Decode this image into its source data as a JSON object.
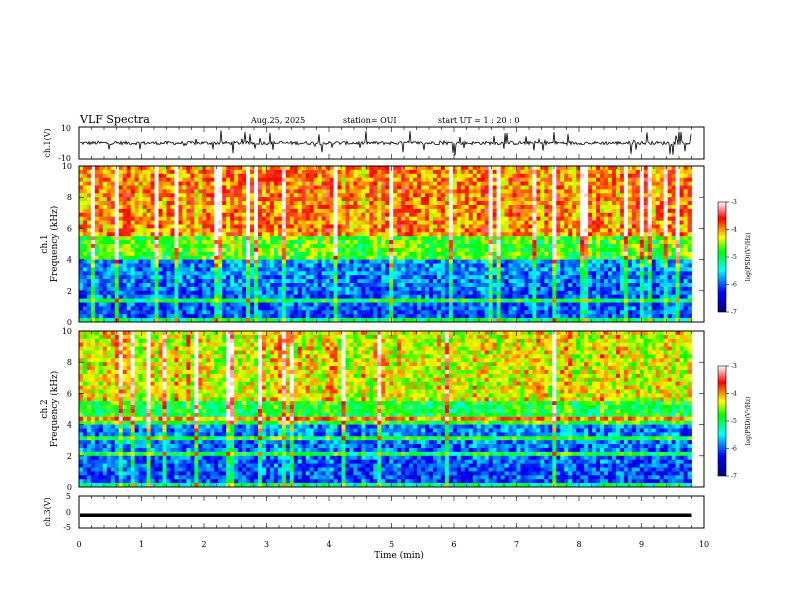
{
  "header": {
    "title": "VLF Spectra",
    "date": "Aug.25, 2025",
    "station": "station= OUI",
    "start": "start  UT =   1 : 20 : 0"
  },
  "chart_data": [
    {
      "type": "line",
      "panel": "waveform-ch1",
      "ylabel": "ch.1(V)",
      "ylim": [
        -10,
        10
      ],
      "yticks": [
        "10",
        "-10"
      ],
      "xlim": [
        0,
        10
      ],
      "baseline": 0
    },
    {
      "type": "heatmap",
      "panel": "spectrogram-ch1",
      "ylabel": "ch.1\nFrequency (kHz)",
      "ylim": [
        0,
        10
      ],
      "yticks": [
        "0",
        "2",
        "4",
        "6",
        "8",
        "10"
      ],
      "xlim": [
        0,
        10
      ],
      "xrange_data": [
        0,
        9.8
      ],
      "colorbar": {
        "label": "log(PSD)(V²/Hz)",
        "range": [
          -7,
          -3
        ],
        "ticks": [
          "-3",
          "-4",
          "-5",
          "-6",
          "-7"
        ],
        "colors": [
          "#000080",
          "#0000ff",
          "#00ffff",
          "#00ff00",
          "#ffff00",
          "#ff0000",
          "#ffffff"
        ]
      }
    },
    {
      "type": "heatmap",
      "panel": "spectrogram-ch2",
      "ylabel": "ch.2\nFrequency (kHz)",
      "ylim": [
        0,
        10
      ],
      "yticks": [
        "0",
        "2",
        "4",
        "6",
        "8",
        "10"
      ],
      "xlim": [
        0,
        10
      ],
      "xrange_data": [
        0,
        9.8
      ],
      "colorbar": {
        "label": "log(PSD)(V²/Hz)",
        "range": [
          -7,
          -3
        ],
        "ticks": [
          "-3",
          "-4",
          "-5",
          "-6",
          "-7"
        ],
        "colors": [
          "#000080",
          "#0000ff",
          "#00ffff",
          "#00ff00",
          "#ffff00",
          "#ff0000",
          "#ffffff"
        ]
      }
    },
    {
      "type": "line",
      "panel": "waveform-ch3",
      "ylabel": "ch.3(V)",
      "ylim": [
        -5,
        5
      ],
      "yticks": [
        "5",
        "0",
        "-5"
      ],
      "xlim": [
        0,
        10
      ],
      "baseline": -1
    }
  ],
  "xaxis": {
    "label": "Time  (min)",
    "ticks": [
      "0",
      "1",
      "2",
      "3",
      "4",
      "5",
      "6",
      "7",
      "8",
      "9",
      "10"
    ]
  }
}
